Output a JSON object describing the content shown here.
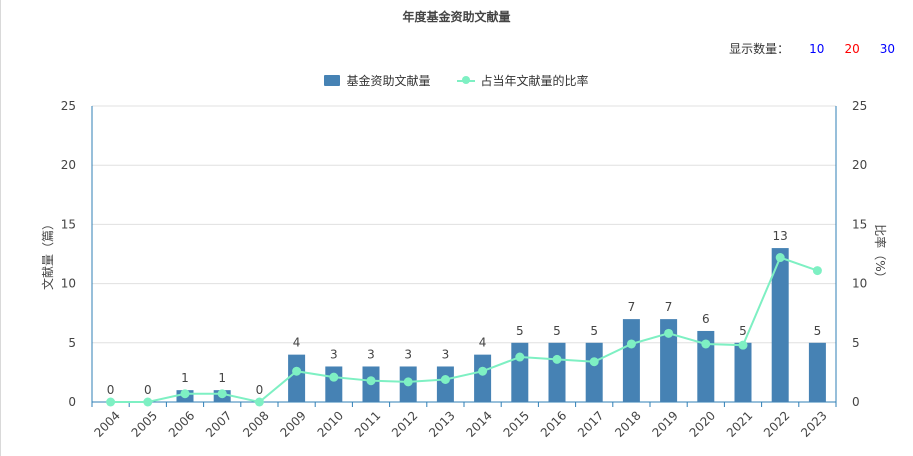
{
  "title": "年度基金资助文献量",
  "display_count": {
    "label": "显示数量：",
    "options": [
      {
        "value": "10",
        "color": "#0000ff"
      },
      {
        "value": "20",
        "color": "#ff0000"
      },
      {
        "value": "30",
        "color": "#0000ff"
      }
    ]
  },
  "colors": {
    "bar": "#4682b4",
    "line": "#7ef0c3",
    "axis": "#2f7fb6",
    "grid": "#e0e0e0"
  },
  "chart_data": {
    "type": "bar",
    "categories": [
      "2004",
      "2005",
      "2006",
      "2007",
      "2008",
      "2009",
      "2010",
      "2011",
      "2012",
      "2013",
      "2014",
      "2015",
      "2016",
      "2017",
      "2018",
      "2019",
      "2020",
      "2021",
      "2022",
      "2023"
    ],
    "series": [
      {
        "name": "基金资助文献量",
        "type": "bar",
        "axis": "left",
        "values": [
          0,
          0,
          1,
          1,
          0,
          4,
          3,
          3,
          3,
          3,
          4,
          5,
          5,
          5,
          7,
          7,
          6,
          5,
          13,
          5
        ]
      },
      {
        "name": "占当年文献量的比率",
        "type": "line",
        "axis": "right",
        "values": [
          0,
          0,
          0.7,
          0.7,
          0,
          2.6,
          2.1,
          1.8,
          1.7,
          1.9,
          2.6,
          3.8,
          3.6,
          3.4,
          4.9,
          5.8,
          4.9,
          4.8,
          12.2,
          11.1
        ]
      }
    ],
    "data_labels": [
      "0",
      "0",
      "1",
      "1",
      "0",
      "4",
      "3",
      "3",
      "3",
      "3",
      "4",
      "5",
      "5",
      "5",
      "7",
      "7",
      "6",
      "5",
      "13",
      "5"
    ],
    "ylabel": "文献量（篇）",
    "y2label": "比率（%）",
    "ylim": [
      0,
      25
    ],
    "y2lim": [
      0,
      25
    ],
    "yticks": [
      "0",
      "5",
      "10",
      "15",
      "20",
      "25"
    ],
    "y2ticks": [
      "0",
      "5",
      "10",
      "15",
      "20",
      "25"
    ],
    "grid": true,
    "legend_position": "top-center"
  }
}
